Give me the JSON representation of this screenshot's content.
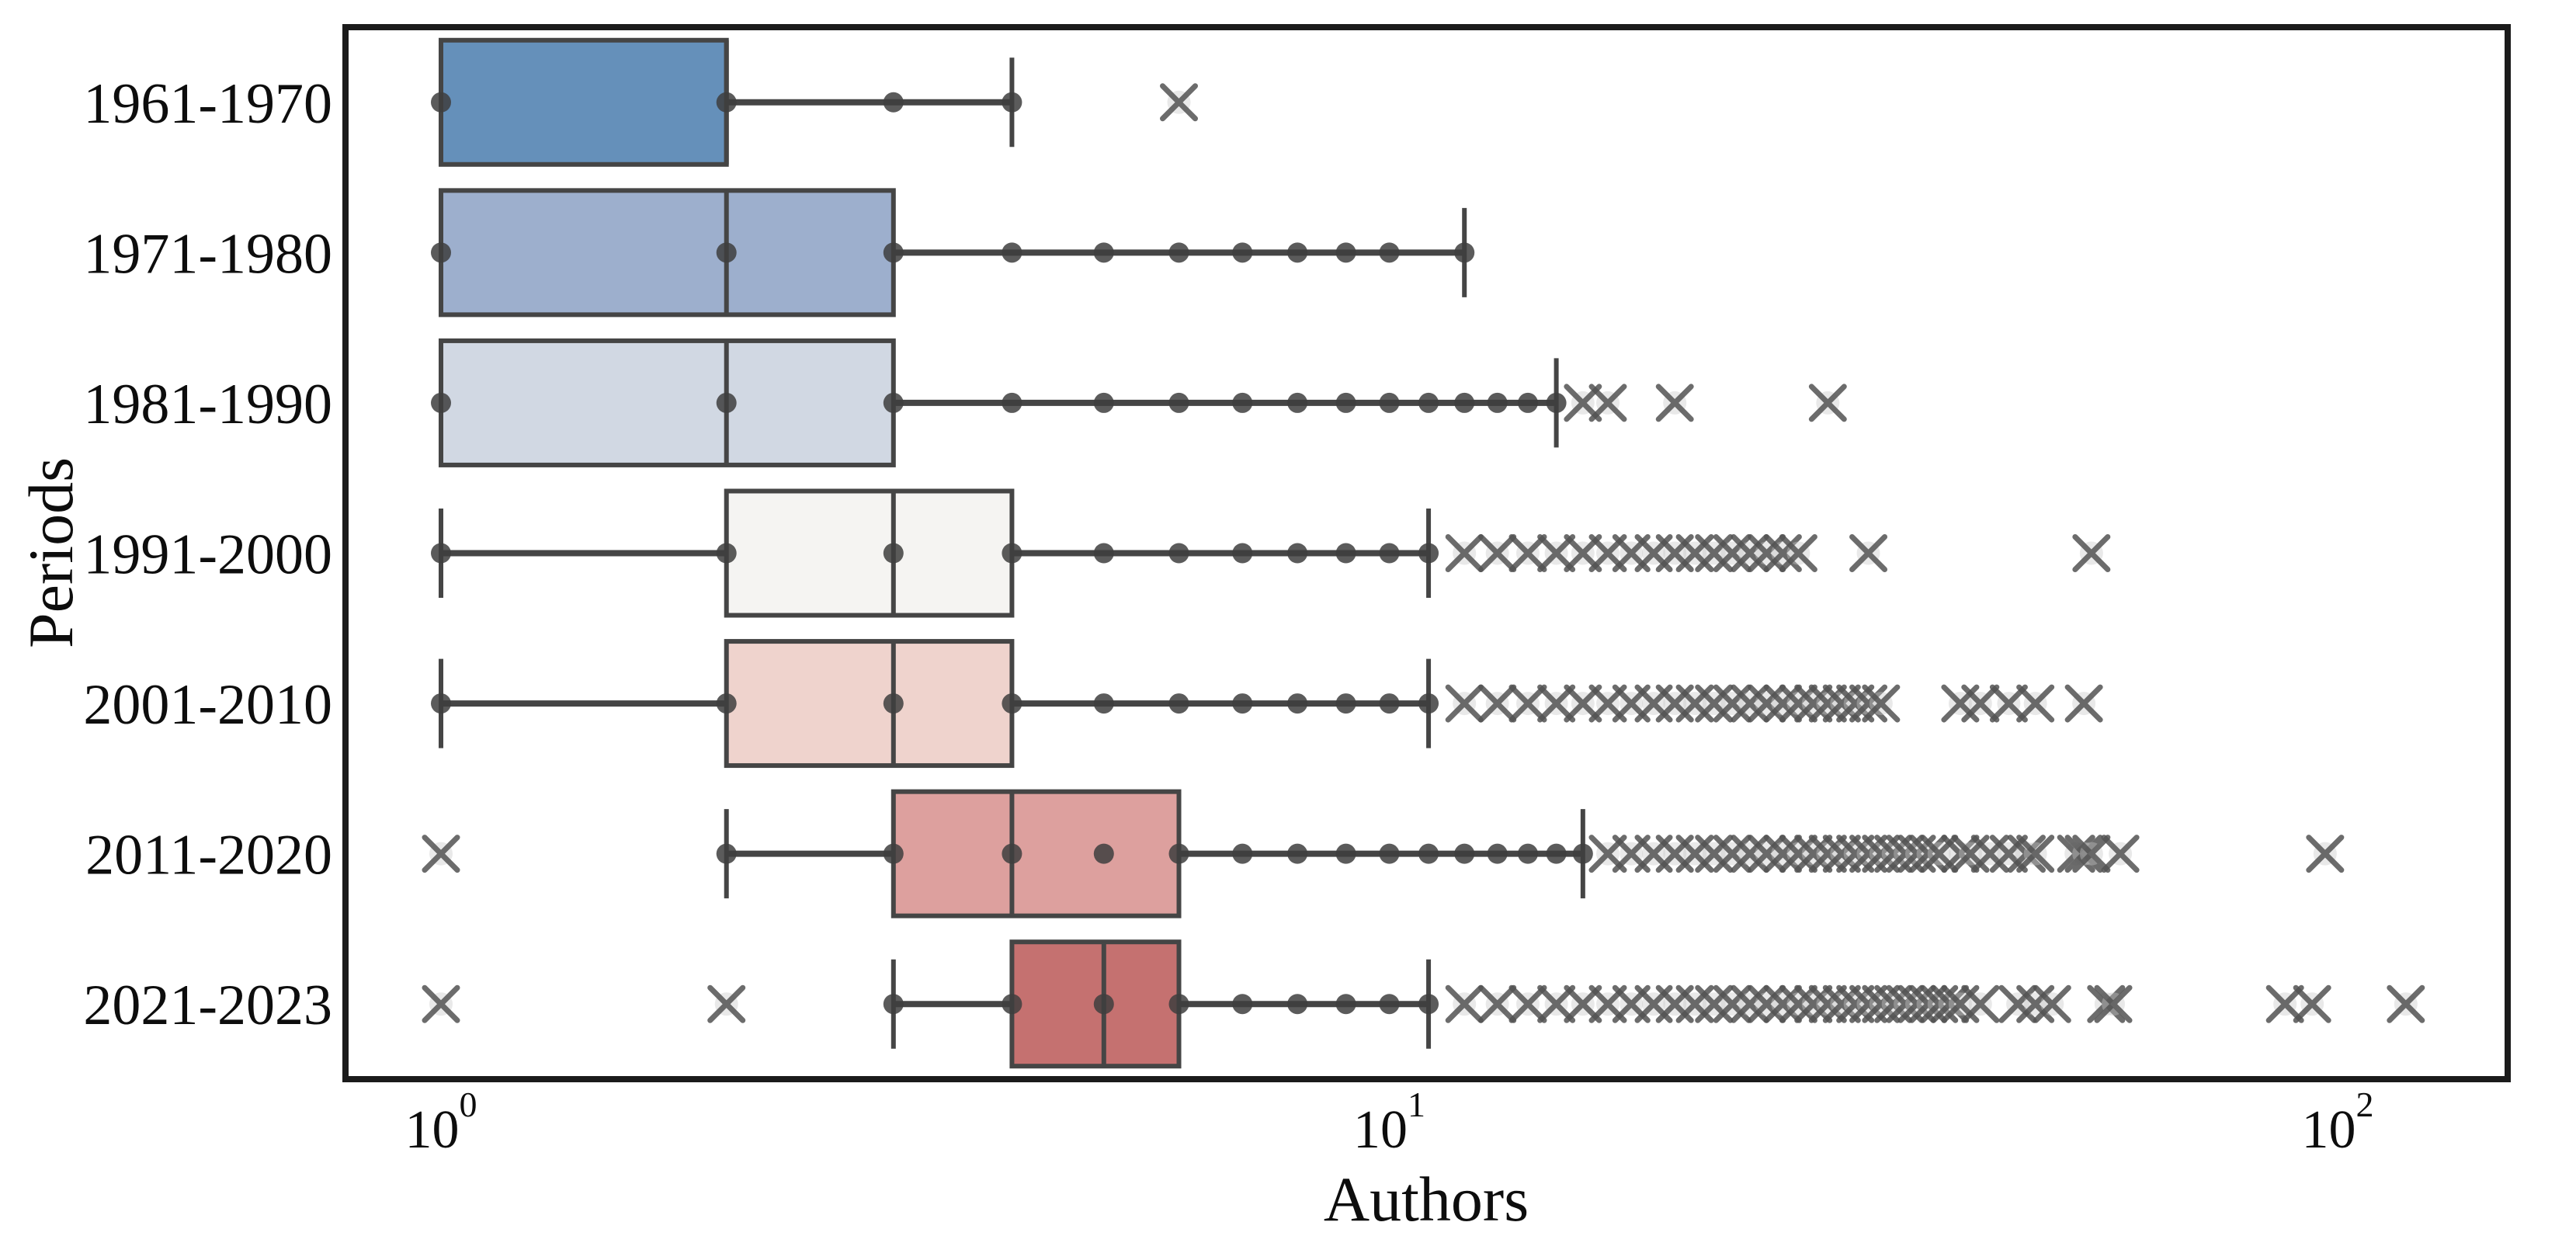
{
  "figure": {
    "background": "#ffffff",
    "frame_color": "#1b1b1b",
    "box_edge_color": "#454545",
    "dot_color": "#3e3e3e",
    "outlier_color": "#525252",
    "outlier_halo_color": "#c8c8c8"
  },
  "chart_data": {
    "type": "box",
    "orientation": "horizontal",
    "x_scale": "log10",
    "x_range_approx": [
      0.79,
      150
    ],
    "xlabel": "Authors",
    "ylabel": "Periods",
    "grid": false,
    "legend": "none",
    "x_ticks": [
      {
        "base": "10",
        "exponent": "0",
        "value": 1
      },
      {
        "base": "10",
        "exponent": "1",
        "value": 10
      },
      {
        "base": "10",
        "exponent": "2",
        "value": 100
      }
    ],
    "categories": [
      "1961-1970",
      "1971-1980",
      "1981-1990",
      "1991-2000",
      "2001-2010",
      "2011-2020",
      "2021-2023"
    ],
    "series": [
      {
        "period": "1961-1970",
        "color": "#6590ba",
        "q1": 1,
        "median": 2,
        "q3": 2,
        "whisker_low": 1,
        "whisker_high": 4,
        "points": [
          1,
          2,
          3,
          4
        ],
        "outliers": [
          6
        ]
      },
      {
        "period": "1971-1980",
        "color": "#9dafcd",
        "q1": 1,
        "median": 2,
        "q3": 3,
        "whisker_low": 1,
        "whisker_high": 12,
        "points": [
          1,
          2,
          3,
          4,
          5,
          6,
          7,
          8,
          9,
          10,
          12
        ],
        "outliers": []
      },
      {
        "period": "1981-1990",
        "color": "#d1d8e3",
        "q1": 1,
        "median": 2,
        "q3": 3,
        "whisker_low": 1,
        "whisker_high": 15,
        "points": [
          1,
          2,
          3,
          4,
          5,
          6,
          7,
          8,
          9,
          10,
          11,
          12,
          13,
          14,
          15
        ],
        "outliers": [
          16,
          17,
          20,
          29
        ]
      },
      {
        "period": "1991-2000",
        "color": "#f5f4f2",
        "q1": 2,
        "median": 3,
        "q3": 4,
        "whisker_low": 1,
        "whisker_high": 11,
        "points": [
          1,
          2,
          3,
          4,
          5,
          6,
          7,
          8,
          9,
          10,
          11
        ],
        "outliers": [
          12,
          13,
          14,
          15,
          16,
          17,
          18,
          19,
          20,
          21,
          22,
          23,
          24,
          25,
          26,
          27,
          32,
          55
        ]
      },
      {
        "period": "2001-2010",
        "color": "#efd3cd",
        "q1": 2,
        "median": 3,
        "q3": 4,
        "whisker_low": 1,
        "whisker_high": 11,
        "points": [
          1,
          2,
          3,
          4,
          5,
          6,
          7,
          8,
          9,
          10,
          11
        ],
        "outliers": [
          12,
          13,
          14,
          15,
          16,
          17,
          18,
          19,
          20,
          21,
          22,
          23,
          24,
          25,
          26,
          27,
          28,
          29,
          30,
          31,
          32,
          33,
          40,
          42,
          45,
          48,
          54
        ]
      },
      {
        "period": "2011-2020",
        "color": "#dda09e",
        "q1": 3,
        "median": 4,
        "q3": 6,
        "whisker_low": 2,
        "whisker_high": 16,
        "points": [
          2,
          3,
          4,
          5,
          6,
          7,
          8,
          9,
          10,
          11,
          12,
          13,
          14,
          15,
          16
        ],
        "outliers": [
          1,
          17,
          18,
          19,
          20,
          21,
          22,
          23,
          24,
          25,
          26,
          27,
          28,
          29,
          30,
          31,
          32,
          33,
          34,
          35,
          36,
          37,
          38,
          40,
          41,
          43,
          45,
          47,
          48,
          53,
          54,
          55,
          59,
          97
        ]
      },
      {
        "period": "2021-2023",
        "color": "#c57170",
        "q1": 4,
        "median": 5,
        "q3": 6,
        "whisker_low": 3,
        "whisker_high": 11,
        "points": [
          3,
          4,
          5,
          6,
          7,
          8,
          9,
          10,
          11
        ],
        "outliers": [
          1,
          2,
          12,
          13,
          14,
          15,
          16,
          17,
          18,
          19,
          20,
          21,
          22,
          23,
          24,
          25,
          26,
          27,
          28,
          29,
          30,
          31,
          32,
          33,
          34,
          35,
          36,
          37,
          38,
          39,
          40,
          42,
          46,
          48,
          50,
          57,
          58,
          88,
          94,
          118
        ]
      }
    ]
  }
}
